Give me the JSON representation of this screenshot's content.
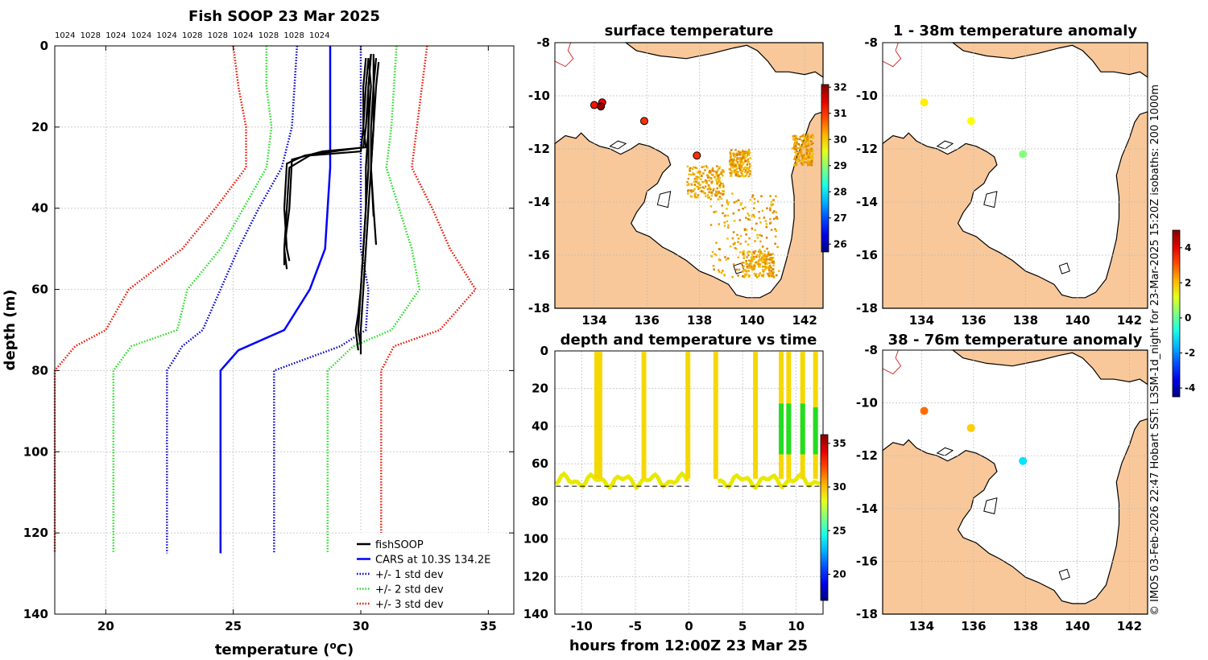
{
  "colors": {
    "land": "#f8c89a",
    "coast": "#000000",
    "fish": "#000000",
    "cars": "#0000ff",
    "std1": "#0000cc",
    "std2": "#22dd22",
    "std3": "#ee1100"
  },
  "footer_text": "© IMOS 03-Feb-2026 22:47 Hobart SST: L3SM-1d_night for 23-Mar-2025 15:20Z isobaths: 200  1000m",
  "chart_data": [
    {
      "type": "line",
      "title": "Fish SOOP 23 Mar 2025",
      "pressure_labels": [
        "1024",
        "1028",
        "1024",
        "1024",
        "1024",
        "1028",
        "1028",
        "1024",
        "1028",
        "1028",
        "1024"
      ],
      "xlabel": "temperature (°C)",
      "xlabel_main": "temperature (",
      "xlabel_unit": "o",
      "xlabel_end": "C)",
      "ylabel": "depth (m)",
      "xlim": [
        18,
        36
      ],
      "ylim": [
        140,
        0
      ],
      "x_ticks": [
        20,
        25,
        30,
        35
      ],
      "y_ticks": [
        0,
        20,
        40,
        60,
        80,
        100,
        120,
        140
      ],
      "legend": [
        "fishSOOP",
        "CARS at 10.3S 134.2E",
        "+/- 1 std dev",
        "+/- 2 std dev",
        "+/- 3 std dev"
      ],
      "series": [
        {
          "name": "CARS at 10.3S 134.2E",
          "style": "solid",
          "depth": [
            0,
            5,
            10,
            20,
            30,
            40,
            50,
            60,
            70,
            75,
            80,
            125
          ],
          "temp": [
            28.8,
            28.8,
            28.8,
            28.8,
            28.8,
            28.7,
            28.6,
            28.0,
            27.0,
            25.2,
            24.5,
            24.5
          ]
        },
        {
          "name": "-1 std",
          "style": "dotted",
          "depth": [
            0,
            10,
            20,
            30,
            40,
            50,
            60,
            70,
            74,
            80,
            125
          ],
          "temp": [
            27.5,
            27.4,
            27.3,
            26.9,
            26.0,
            25.2,
            24.5,
            23.8,
            23.0,
            22.4,
            22.4
          ]
        },
        {
          "name": "+1 std",
          "style": "dotted",
          "depth": [
            0,
            10,
            20,
            30,
            40,
            50,
            60,
            70,
            74,
            80,
            125
          ],
          "temp": [
            30.0,
            30.0,
            30.0,
            30.0,
            30.0,
            30.0,
            30.3,
            30.2,
            29.2,
            26.6,
            26.6
          ]
        },
        {
          "name": "-2 std",
          "style": "dotted",
          "depth": [
            0,
            10,
            20,
            30,
            40,
            50,
            60,
            70,
            74,
            80,
            125
          ],
          "temp": [
            26.3,
            26.3,
            26.5,
            26.3,
            25.4,
            24.5,
            23.2,
            22.8,
            21.0,
            20.3,
            20.3
          ]
        },
        {
          "name": "+2 std",
          "style": "dotted",
          "depth": [
            0,
            10,
            20,
            30,
            40,
            50,
            60,
            70,
            74,
            80,
            125
          ],
          "temp": [
            31.4,
            31.3,
            31.2,
            31.0,
            31.5,
            32.0,
            32.3,
            31.2,
            29.7,
            28.7,
            28.7
          ]
        },
        {
          "name": "-3 std",
          "style": "dotted",
          "depth": [
            0,
            10,
            20,
            30,
            40,
            50,
            60,
            70,
            74,
            80,
            125
          ],
          "temp": [
            25.0,
            25.2,
            25.5,
            25.5,
            24.3,
            23.0,
            20.9,
            20.0,
            18.8,
            18.0,
            18.0
          ]
        },
        {
          "name": "+3 std",
          "style": "dotted",
          "depth": [
            0,
            10,
            20,
            30,
            40,
            50,
            60,
            70,
            74,
            80,
            125
          ],
          "temp": [
            32.6,
            32.4,
            32.2,
            32.0,
            32.8,
            33.5,
            34.5,
            33.1,
            31.3,
            30.8,
            30.8
          ]
        }
      ],
      "fish_profiles": [
        {
          "depth": [
            3,
            10,
            20,
            26,
            27,
            30,
            40,
            50,
            55
          ],
          "temp": [
            30.2,
            30.1,
            30.1,
            30.0,
            28.0,
            27.2,
            27.1,
            27.0,
            27.1
          ]
        },
        {
          "depth": [
            3,
            10,
            20,
            25,
            26,
            28,
            40,
            50,
            54
          ],
          "temp": [
            30.3,
            30.2,
            30.1,
            30.2,
            28.5,
            27.3,
            27.2,
            27.0,
            27.0
          ]
        },
        {
          "depth": [
            2,
            10,
            20,
            25,
            27,
            29,
            40,
            50,
            53
          ],
          "temp": [
            30.4,
            30.3,
            30.2,
            30.1,
            27.8,
            27.1,
            27.0,
            27.1,
            27.2
          ]
        },
        {
          "depth": [
            3,
            10,
            20,
            30,
            40,
            50,
            60,
            66,
            70,
            75
          ],
          "temp": [
            30.3,
            30.4,
            30.3,
            30.3,
            30.2,
            30.1,
            30.0,
            29.9,
            29.8,
            29.9
          ]
        },
        {
          "depth": [
            2,
            10,
            20,
            30,
            40,
            50,
            60,
            70,
            76
          ],
          "temp": [
            30.5,
            30.5,
            30.4,
            30.4,
            30.3,
            30.2,
            30.1,
            30.0,
            30.0
          ]
        },
        {
          "depth": [
            3,
            10,
            20,
            30,
            40,
            49
          ],
          "temp": [
            30.6,
            30.5,
            30.5,
            30.4,
            30.5,
            30.6
          ]
        },
        {
          "depth": [
            2,
            10,
            20,
            30,
            40,
            50,
            60,
            70,
            74
          ],
          "temp": [
            30.4,
            30.3,
            30.3,
            30.2,
            30.2,
            30.1,
            30.0,
            29.9,
            30.0
          ]
        },
        {
          "depth": [
            4,
            10,
            20,
            30,
            42
          ],
          "temp": [
            30.7,
            30.6,
            30.5,
            30.4,
            30.5
          ]
        }
      ]
    },
    {
      "type": "map",
      "title": "surface temperature",
      "xlim": [
        132.5,
        142.7
      ],
      "ylim": [
        -18,
        -8
      ],
      "x_ticks": [
        134,
        136,
        138,
        140,
        142
      ],
      "y_ticks": [
        -8,
        -10,
        -12,
        -14,
        -16,
        -18
      ],
      "colorbar_ticks": [
        26,
        27,
        28,
        29,
        30,
        31,
        32
      ],
      "colorbar_range": [
        25.7,
        32.1
      ],
      "points": [
        {
          "lon": 134.0,
          "lat": -10.35,
          "value": 31.2
        },
        {
          "lon": 134.3,
          "lat": -10.25,
          "value": 31.3
        },
        {
          "lon": 134.25,
          "lat": -10.4,
          "value": 32.0
        },
        {
          "lon": 135.9,
          "lat": -10.95,
          "value": 31.0
        },
        {
          "lon": 137.9,
          "lat": -12.25,
          "value": 31.0
        }
      ]
    },
    {
      "type": "scatter",
      "title": "depth and temperature vs time",
      "xlabel": "hours from 12:00Z 23 Mar 25",
      "xlim": [
        -12.5,
        12.5
      ],
      "ylim": [
        140,
        0
      ],
      "x_ticks": [
        -10,
        -5,
        0,
        5,
        10
      ],
      "y_ticks": [
        0,
        20,
        40,
        60,
        80,
        100,
        120,
        140
      ],
      "colorbar_ticks": [
        20,
        25,
        30,
        35
      ],
      "colorbar_range": [
        17,
        36
      ]
    },
    {
      "type": "map",
      "title": "1 - 38m temperature anomaly",
      "xlim": [
        132.5,
        142.7
      ],
      "ylim": [
        -18,
        -8
      ],
      "x_ticks": [
        134,
        136,
        138,
        140,
        142
      ],
      "y_ticks": [
        -8,
        -10,
        -12,
        -14,
        -16,
        -18
      ],
      "points": [
        {
          "lon": 134.1,
          "lat": -10.25,
          "value": 1.6
        },
        {
          "lon": 135.9,
          "lat": -10.95,
          "value": 1.4
        },
        {
          "lon": 137.9,
          "lat": -12.2,
          "value": 0.3
        }
      ]
    },
    {
      "type": "map",
      "title": "38 - 76m temperature anomaly",
      "xlim": [
        132.5,
        142.7
      ],
      "ylim": [
        -18,
        -8
      ],
      "x_ticks": [
        134,
        136,
        138,
        140,
        142
      ],
      "y_ticks": [
        -8,
        -10,
        -12,
        -14,
        -16,
        -18
      ],
      "points": [
        {
          "lon": 134.1,
          "lat": -10.3,
          "value": 2.8
        },
        {
          "lon": 135.9,
          "lat": -10.95,
          "value": 1.9
        },
        {
          "lon": 137.9,
          "lat": -12.2,
          "value": -1.2
        }
      ]
    },
    {
      "type": "colorbar",
      "title": "anomaly colorbar",
      "colorbar_ticks": [
        -4,
        -2,
        0,
        2,
        4
      ],
      "colorbar_range": [
        -4.5,
        5.0
      ]
    }
  ]
}
